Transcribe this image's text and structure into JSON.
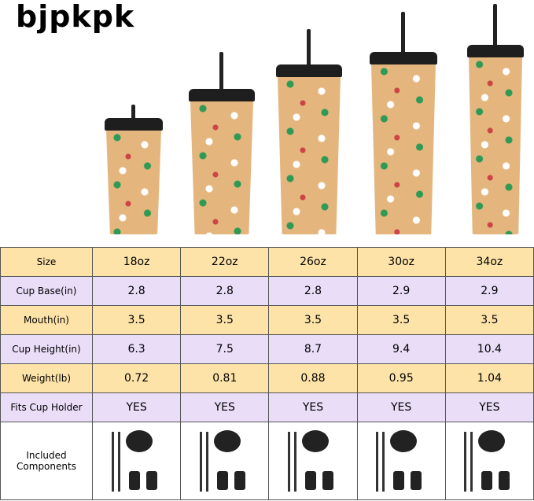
{
  "brand": {
    "logo_text": "bjpkpk"
  },
  "colors": {
    "size_row": "#fde3a8",
    "alt_row": "#e9ddf8",
    "cup": "#e4b67e",
    "lid": "#1e1e1e"
  },
  "table": {
    "rows": [
      {
        "label": "Size",
        "values": [
          "18oz",
          "22oz",
          "26oz",
          "30oz",
          "34oz"
        ]
      },
      {
        "label": "Cup Base(in)",
        "values": [
          "2.8",
          "2.8",
          "2.8",
          "2.9",
          "2.9"
        ]
      },
      {
        "label": "Mouth(in)",
        "values": [
          "3.5",
          "3.5",
          "3.5",
          "3.5",
          "3.5"
        ]
      },
      {
        "label": "Cup Height(in)",
        "values": [
          "6.3",
          "7.5",
          "8.7",
          "9.4",
          "10.4"
        ]
      },
      {
        "label": "Weight(lb)",
        "values": [
          "0.72",
          "0.81",
          "0.88",
          "0.95",
          "1.04"
        ]
      },
      {
        "label": "Fits Cup Holder",
        "values": [
          "YES",
          "YES",
          "YES",
          "YES",
          "YES"
        ]
      }
    ],
    "components_label": "Included Components"
  }
}
